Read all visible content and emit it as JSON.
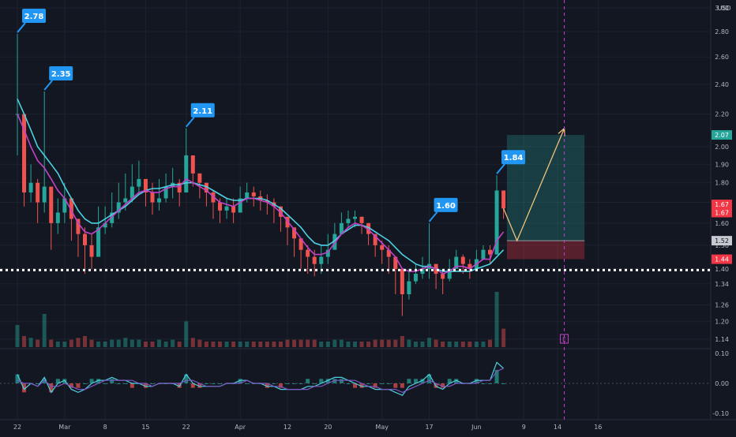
{
  "chart_data": {
    "type": "line",
    "symbol_currency": "USD",
    "y_axis": {
      "ticks": [
        3.0,
        2.8,
        2.6,
        2.4,
        2.2,
        2.0,
        1.9,
        1.8,
        1.7,
        1.6,
        1.5,
        1.4,
        1.34,
        1.26,
        1.2,
        1.14
      ],
      "tick_labels": [
        "3.00",
        "2.80",
        "2.60",
        "2.40",
        "2.20",
        "2.00",
        "1.90",
        "1.80",
        "1.70",
        "1.60",
        "1.50",
        "1.40",
        "1.34",
        "1.26",
        "1.20",
        "1.14"
      ],
      "scale": "log"
    },
    "x_axis": {
      "ticks": [
        {
          "label": "22",
          "index": 0
        },
        {
          "label": "Mar",
          "index": 7
        },
        {
          "label": "8",
          "index": 13
        },
        {
          "label": "15",
          "index": 19
        },
        {
          "label": "22",
          "index": 25
        },
        {
          "label": "Apr",
          "index": 33
        },
        {
          "label": "12",
          "index": 40
        },
        {
          "label": "20",
          "index": 46
        },
        {
          "label": "May",
          "index": 54
        },
        {
          "label": "17",
          "index": 61
        },
        {
          "label": "Jun",
          "index": 68
        },
        {
          "label": "9",
          "index": 75
        },
        {
          "label": "14",
          "index": 80
        },
        {
          "label": "16",
          "index": 86
        }
      ]
    },
    "price_close": [
      2.2,
      1.75,
      1.8,
      1.7,
      1.78,
      1.6,
      1.65,
      1.72,
      1.62,
      1.55,
      1.5,
      1.45,
      1.58,
      1.6,
      1.65,
      1.7,
      1.72,
      1.78,
      1.82,
      1.75,
      1.7,
      1.72,
      1.78,
      1.8,
      1.75,
      1.95,
      1.85,
      1.8,
      1.75,
      1.7,
      1.66,
      1.68,
      1.65,
      1.72,
      1.75,
      1.73,
      1.71,
      1.7,
      1.68,
      1.63,
      1.58,
      1.53,
      1.48,
      1.45,
      1.42,
      1.45,
      1.48,
      1.55,
      1.6,
      1.62,
      1.63,
      1.6,
      1.55,
      1.5,
      1.48,
      1.45,
      1.4,
      1.3,
      1.35,
      1.38,
      1.4,
      1.42,
      1.38,
      1.36,
      1.4,
      1.45,
      1.42,
      1.4,
      1.44,
      1.48,
      1.46,
      1.76,
      1.67
    ],
    "price_high": [
      2.78,
      1.95,
      1.9,
      1.82,
      2.35,
      1.75,
      1.72,
      1.8,
      1.7,
      1.62,
      1.58,
      1.55,
      1.68,
      1.68,
      1.75,
      1.8,
      1.85,
      1.9,
      1.92,
      1.82,
      1.8,
      1.82,
      1.85,
      1.88,
      1.82,
      2.11,
      1.95,
      1.85,
      1.8,
      1.76,
      1.72,
      1.72,
      1.72,
      1.78,
      1.8,
      1.78,
      1.76,
      1.74,
      1.72,
      1.68,
      1.62,
      1.58,
      1.52,
      1.5,
      1.48,
      1.5,
      1.55,
      1.6,
      1.65,
      1.66,
      1.66,
      1.63,
      1.6,
      1.55,
      1.52,
      1.5,
      1.44,
      1.4,
      1.4,
      1.42,
      1.45,
      1.6,
      1.42,
      1.4,
      1.44,
      1.48,
      1.46,
      1.44,
      1.48,
      1.5,
      1.5,
      1.84,
      1.76
    ],
    "price_low": [
      1.95,
      1.68,
      1.7,
      1.6,
      1.65,
      1.48,
      1.55,
      1.6,
      1.52,
      1.45,
      1.38,
      1.4,
      1.5,
      1.55,
      1.58,
      1.62,
      1.66,
      1.7,
      1.74,
      1.68,
      1.64,
      1.66,
      1.7,
      1.72,
      1.68,
      1.8,
      1.78,
      1.72,
      1.68,
      1.62,
      1.6,
      1.62,
      1.6,
      1.66,
      1.7,
      1.68,
      1.66,
      1.64,
      1.6,
      1.56,
      1.5,
      1.45,
      1.4,
      1.38,
      1.37,
      1.38,
      1.42,
      1.5,
      1.55,
      1.58,
      1.58,
      1.55,
      1.5,
      1.45,
      1.42,
      1.38,
      1.3,
      1.22,
      1.28,
      1.34,
      1.36,
      1.36,
      1.32,
      1.3,
      1.35,
      1.4,
      1.38,
      1.36,
      1.4,
      1.44,
      1.42,
      1.46,
      1.62
    ],
    "series": [
      {
        "name": "",
        "color": "#4dd0e1",
        "values": [
          2.3,
          2.2,
          2.1,
          2.0,
          1.95,
          1.9,
          1.85,
          1.78,
          1.72,
          1.66,
          1.62,
          1.6,
          1.6,
          1.62,
          1.64,
          1.66,
          1.68,
          1.71,
          1.74,
          1.76,
          1.77,
          1.77,
          1.78,
          1.79,
          1.79,
          1.8,
          1.8,
          1.79,
          1.78,
          1.76,
          1.74,
          1.72,
          1.71,
          1.71,
          1.72,
          1.72,
          1.72,
          1.71,
          1.69,
          1.67,
          1.64,
          1.61,
          1.58,
          1.54,
          1.51,
          1.5,
          1.5,
          1.52,
          1.55,
          1.57,
          1.59,
          1.59,
          1.58,
          1.56,
          1.54,
          1.52,
          1.49,
          1.46,
          1.44,
          1.42,
          1.41,
          1.41,
          1.4,
          1.39,
          1.39,
          1.39,
          1.39,
          1.39,
          1.4,
          1.41,
          1.42,
          1.45,
          1.48
        ]
      },
      {
        "name": "",
        "color": "#c342c9",
        "values": [
          2.2,
          2.1,
          2.0,
          1.92,
          1.88,
          1.82,
          1.76,
          1.72,
          1.66,
          1.6,
          1.56,
          1.55,
          1.57,
          1.6,
          1.63,
          1.66,
          1.69,
          1.72,
          1.75,
          1.76,
          1.75,
          1.75,
          1.77,
          1.78,
          1.78,
          1.82,
          1.8,
          1.78,
          1.76,
          1.73,
          1.7,
          1.69,
          1.68,
          1.7,
          1.72,
          1.72,
          1.71,
          1.7,
          1.68,
          1.65,
          1.61,
          1.57,
          1.53,
          1.49,
          1.46,
          1.46,
          1.47,
          1.51,
          1.55,
          1.58,
          1.6,
          1.59,
          1.57,
          1.54,
          1.51,
          1.48,
          1.45,
          1.4,
          1.39,
          1.39,
          1.4,
          1.41,
          1.4,
          1.38,
          1.39,
          1.41,
          1.41,
          1.4,
          1.42,
          1.44,
          1.44,
          1.52,
          1.56
        ]
      }
    ],
    "volume": [
      12,
      6,
      5,
      4,
      18,
      4,
      3,
      3,
      4,
      5,
      6,
      4,
      3,
      3,
      4,
      4,
      5,
      4,
      4,
      3,
      3,
      4,
      3,
      4,
      3,
      14,
      5,
      4,
      3,
      3,
      3,
      3,
      3,
      3,
      3,
      3,
      3,
      3,
      3,
      3,
      4,
      4,
      4,
      4,
      4,
      3,
      3,
      4,
      4,
      3,
      3,
      3,
      3,
      4,
      4,
      4,
      4,
      6,
      4,
      3,
      3,
      5,
      4,
      3,
      3,
      3,
      3,
      3,
      3,
      3,
      4,
      30,
      10
    ],
    "oscillator_a": [
      0.03,
      -0.02,
      0.0,
      -0.01,
      0.02,
      -0.03,
      0.0,
      0.01,
      -0.02,
      -0.03,
      -0.02,
      0.0,
      0.01,
      0.01,
      0.02,
      0.01,
      0.01,
      0.0,
      0.0,
      -0.01,
      -0.01,
      0.0,
      0.0,
      0.0,
      -0.01,
      0.03,
      0.0,
      -0.01,
      -0.01,
      -0.01,
      -0.01,
      0.0,
      0.0,
      0.01,
      0.01,
      0.0,
      0.0,
      -0.01,
      -0.01,
      -0.02,
      -0.02,
      -0.02,
      -0.02,
      -0.01,
      -0.01,
      0.0,
      0.01,
      0.02,
      0.02,
      0.01,
      0.0,
      -0.01,
      -0.01,
      -0.02,
      -0.02,
      -0.02,
      -0.03,
      -0.04,
      -0.01,
      0.0,
      0.01,
      0.03,
      -0.01,
      -0.02,
      0.0,
      0.01,
      0.0,
      0.0,
      0.01,
      0.01,
      0.01,
      0.07,
      0.05
    ],
    "oscillator_b": [
      0.01,
      0.0,
      0.0,
      -0.01,
      0.01,
      -0.01,
      -0.01,
      0.0,
      -0.01,
      -0.02,
      -0.02,
      -0.01,
      0.0,
      0.01,
      0.01,
      0.01,
      0.01,
      0.01,
      0.0,
      0.0,
      -0.01,
      0.0,
      0.0,
      0.0,
      0.0,
      0.01,
      0.01,
      0.0,
      -0.01,
      -0.01,
      -0.01,
      0.0,
      0.0,
      0.0,
      0.01,
      0.0,
      0.0,
      0.0,
      -0.01,
      -0.01,
      -0.02,
      -0.02,
      -0.02,
      -0.02,
      -0.01,
      -0.01,
      0.0,
      0.01,
      0.01,
      0.01,
      0.01,
      0.0,
      -0.01,
      -0.01,
      -0.02,
      -0.02,
      -0.02,
      -0.03,
      -0.02,
      -0.01,
      0.0,
      0.01,
      0.0,
      -0.01,
      -0.01,
      0.0,
      0.0,
      0.0,
      0.0,
      0.01,
      0.01,
      0.04,
      0.05
    ],
    "oscillator_axis": {
      "ticks": [
        0.1,
        0.0,
        -0.1
      ],
      "tick_labels": [
        "0.10",
        "0.00",
        "-0.10"
      ]
    },
    "peak_callouts": [
      {
        "index": 0,
        "price": 2.78,
        "label": "2.78"
      },
      {
        "index": 4,
        "price": 2.35,
        "label": "2.35"
      },
      {
        "index": 25,
        "price": 2.11,
        "label": "2.11"
      },
      {
        "index": 61,
        "price": 1.6,
        "label": "1.60"
      },
      {
        "index": 71,
        "price": 1.84,
        "label": "1.84"
      }
    ],
    "support_level": 1.395,
    "position_box": {
      "start_index": 72.5,
      "end_index": 84,
      "entry": 1.52,
      "target": 2.07,
      "stop": 1.44
    },
    "projection_path": [
      {
        "index": 72,
        "price": 1.67
      },
      {
        "index": 74,
        "price": 1.52
      },
      {
        "index": 81,
        "price": 2.11
      }
    ],
    "event_marker": {
      "index": 81,
      "label": "E"
    },
    "price_tags": [
      {
        "price": 2.07,
        "label": "2.07",
        "color": "#26a69a"
      },
      {
        "price": 1.69,
        "label": "1.67",
        "color": "#f23645"
      },
      {
        "price": 1.65,
        "label": "1.67",
        "color": "#f23645"
      },
      {
        "price": 1.52,
        "label": "1.52",
        "color": "#c6c9d0"
      },
      {
        "price": 1.44,
        "label": "1.44",
        "color": "#f23645"
      }
    ],
    "up_color": "#26a69a",
    "down_color": "#ef5350"
  }
}
